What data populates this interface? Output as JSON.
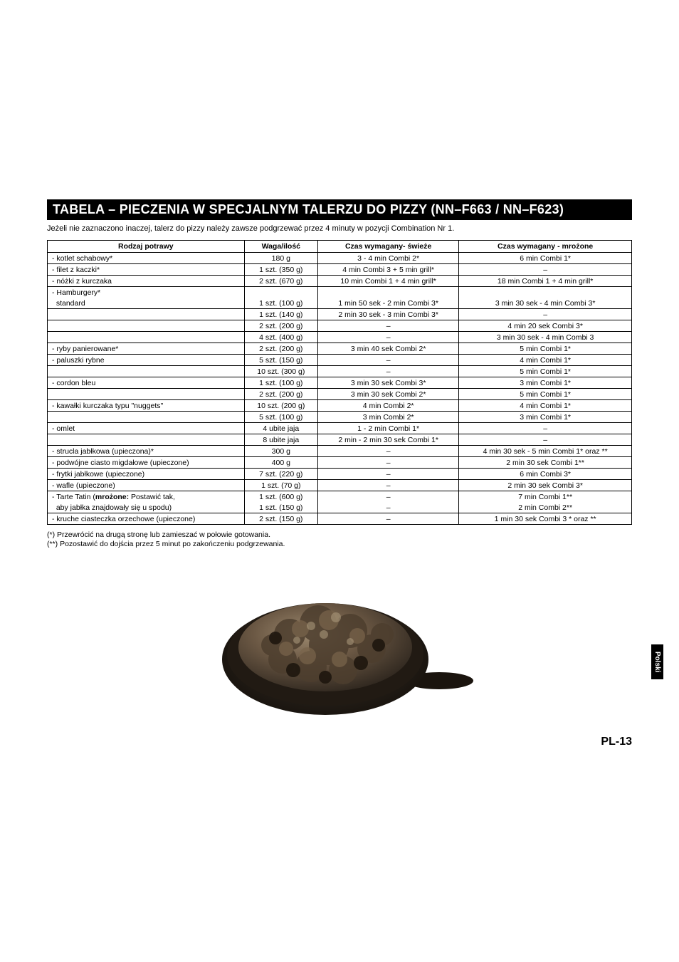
{
  "title": "TABELA – PIECZENIA W SPECJALNYM TALERZU DO PIZZY (NN–F663 / NN–F623)",
  "subtitle": "Jeżeli nie zaznaczono inaczej, talerz do pizzy należy zawsze podgrzewać przez 4 minuty w pozycji Combination Nr 1.",
  "headers": [
    "Rodzaj potrawy",
    "Waga/ilość",
    "Czas wymagany- świeże",
    "Czas wymagany - mrożone"
  ],
  "rows": [
    {
      "c": [
        "- kotlet schabowy*",
        "180 g",
        "3 - 4 min Combi 2*",
        "6 min Combi 1*"
      ]
    },
    {
      "c": [
        "- filet z kaczki*",
        "1 szt. (350 g)",
        "4 min Combi 3 + 5 min grill*",
        "–"
      ]
    },
    {
      "c": [
        "- nóżki z kurczaka",
        "2 szt. (670 g)",
        "10 min Combi 1 + 4 min grill*",
        "18 min Combi 1 + 4 min grill*"
      ]
    },
    {
      "c": [
        "- Hamburgery*",
        "",
        "",
        ""
      ]
    },
    {
      "c": [
        "  standard",
        "1 szt. (100 g)",
        "1 min 50 sek - 2 min Combi 3*",
        "3 min 30 sek - 4 min Combi 3*"
      ],
      "noTop": true
    },
    {
      "c": [
        "",
        "1 szt. (140 g)",
        "2 min 30 sek - 3 min Combi 3*",
        "–"
      ]
    },
    {
      "c": [
        "",
        "2 szt. (200 g)",
        "–",
        "4 min 20 sek Combi 3*"
      ]
    },
    {
      "c": [
        "",
        "4 szt. (400 g)",
        "–",
        "3 min 30 sek - 4 min Combi 3"
      ]
    },
    {
      "c": [
        "- ryby panierowane*",
        "2 szt. (200 g)",
        "3 min 40 sek Combi 2*",
        "5 min Combi 1*"
      ]
    },
    {
      "c": [
        "- paluszki rybne",
        "5 szt. (150 g)",
        "–",
        "4 min Combi 1*"
      ]
    },
    {
      "c": [
        "",
        "10 szt. (300 g)",
        "–",
        "5 min Combi 1*"
      ]
    },
    {
      "c": [
        "- cordon bleu",
        "1 szt. (100 g)",
        "3 min 30 sek Combi 3*",
        "3 min Combi 1*"
      ]
    },
    {
      "c": [
        "",
        "2 szt. (200 g)",
        "3 min 30 sek Combi 2*",
        "5 min Combi 1*"
      ]
    },
    {
      "c": [
        "- kawałki kurczaka typu \"nuggets\"",
        "10 szt. (200 g)",
        "4 min Combi 2*",
        "4 min Combi 1*"
      ]
    },
    {
      "c": [
        "",
        "5 szt. (100 g)",
        "3 min Combi 2*",
        "3 min Combi 1*"
      ]
    },
    {
      "c": [
        "- omlet",
        "4 ubite jaja",
        "1 - 2 min Combi 1*",
        "–"
      ]
    },
    {
      "c": [
        "",
        "8 ubite jaja",
        "2 min - 2 min 30 sek Combi 1*",
        "–"
      ]
    },
    {
      "c": [
        "- strucla jabłkowa (upieczona)*",
        "300 g",
        "–",
        "4 min 30 sek - 5 min Combi 1* oraz **"
      ]
    },
    {
      "c": [
        "- podwójne ciasto migdałowe (upieczone)",
        "400 g",
        "–",
        "2 min 30 sek Combi 1**"
      ]
    },
    {
      "c": [
        "- frytki jabłkowe (upieczone)",
        "7 szt. (220 g)",
        "–",
        "6 min Combi 3*"
      ]
    },
    {
      "c": [
        "- wafle (upieczone)",
        "1 szt. (70 g)",
        "–",
        "2 min 30 sek Combi 3*"
      ]
    },
    {
      "c": [
        "- Tarte Tatin (<b>mrożone:</b> Postawić tak,",
        "1 szt. (600 g)",
        "–",
        "7 min Combi 1**"
      ]
    },
    {
      "c": [
        "  aby jabłka znajdowały się u spodu)",
        "1 szt. (150 g)",
        "–",
        "2 min Combi 2**"
      ],
      "noTop": true
    },
    {
      "c": [
        "- kruche ciasteczka orzechowe (upieczone)",
        "2 szt. (150 g)",
        "–",
        "1 min 30 sek Combi 3 * oraz **"
      ],
      "last": true
    }
  ],
  "footnote1": "(*) Przewrócić na drugą stronę lub zamieszać w połowie gotowania.",
  "footnote2": "(**) Pozostawić do dojścia przez 5 minut po zakończeniu podgrzewania.",
  "sideTab": "Polski",
  "pageNum": "PL-13",
  "colors": {
    "titleBg": "#000000",
    "titleFg": "#ffffff",
    "text": "#000000",
    "border": "#000000",
    "pizzaBase": "#2a2520",
    "pizzaTop": "#6b5844",
    "pizzaHighlight": "#8a7358"
  },
  "font": {
    "family": "Arial",
    "bodySize": 10.5,
    "titleSize": 18
  }
}
